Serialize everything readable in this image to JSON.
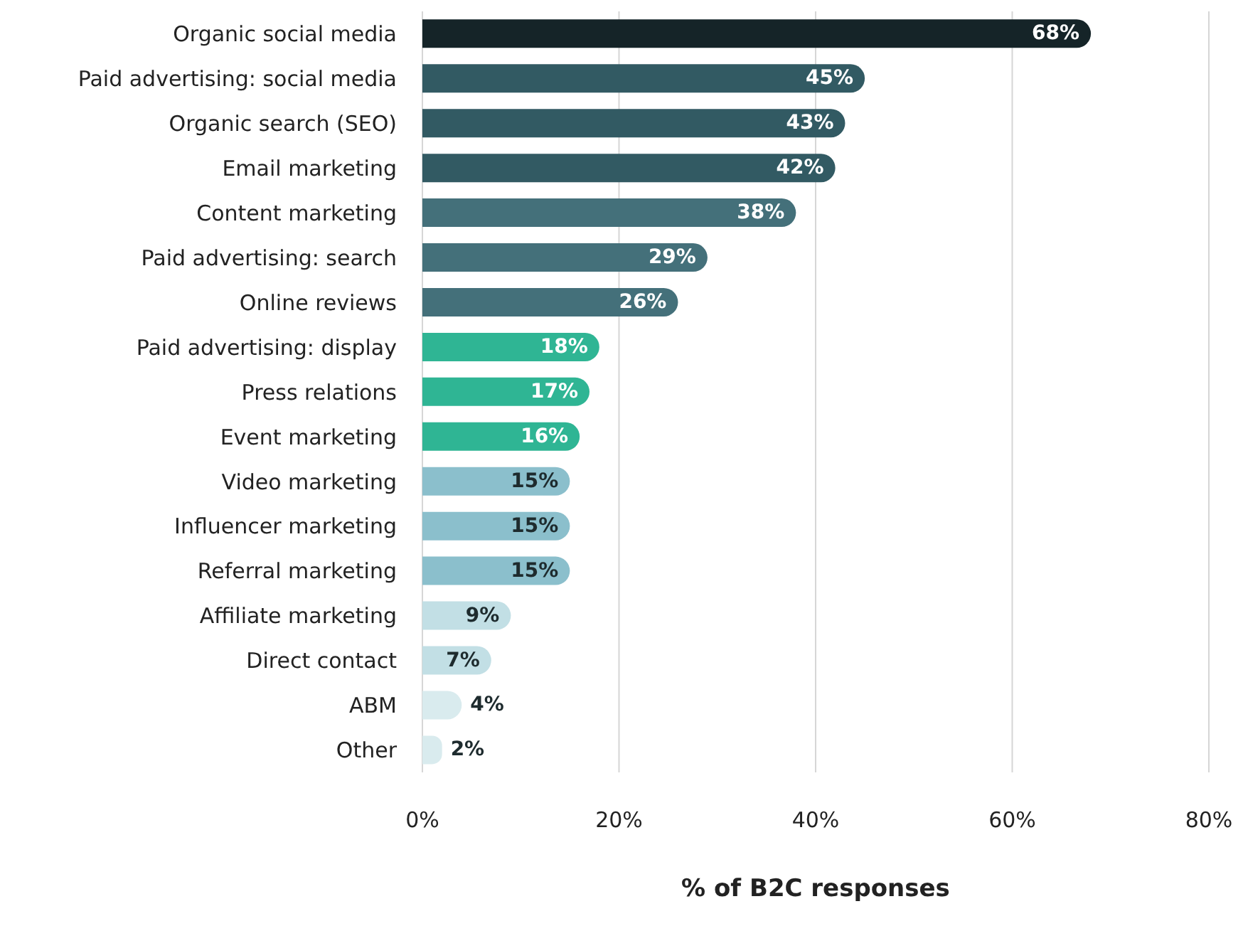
{
  "chart_data": {
    "type": "bar",
    "orientation": "horizontal",
    "xlabel": "% of B2C responses",
    "categories": [
      "Organic social media",
      "Paid advertising: social media",
      "Organic search (SEO)",
      "Email marketing",
      "Content marketing",
      "Paid advertising: search",
      "Online reviews",
      "Paid advertising: display",
      "Press relations",
      "Event marketing",
      "Video marketing",
      "Influencer marketing",
      "Referral marketing",
      "Affiliate marketing",
      "Direct contact",
      "ABM",
      "Other"
    ],
    "values": [
      68,
      45,
      43,
      42,
      38,
      29,
      26,
      18,
      17,
      16,
      15,
      15,
      15,
      9,
      7,
      4,
      2
    ],
    "colors": [
      "#152428",
      "#325a63",
      "#325a63",
      "#325a63",
      "#44707a",
      "#44707a",
      "#44707a",
      "#2fb594",
      "#2fb594",
      "#2fb594",
      "#8bbfcc",
      "#8bbfcc",
      "#8bbfcc",
      "#c2dfe5",
      "#c2dfe5",
      "#d9ebee",
      "#d9ebee"
    ],
    "value_labels": [
      "68%",
      "45%",
      "43%",
      "42%",
      "38%",
      "29%",
      "26%",
      "18%",
      "17%",
      "16%",
      "15%",
      "15%",
      "15%",
      "9%",
      "7%",
      "4%",
      "2%"
    ],
    "xlim": [
      0,
      80
    ],
    "xticks": [
      {
        "value": 0,
        "label": "0%"
      },
      {
        "value": 20,
        "label": "20%"
      },
      {
        "value": 40,
        "label": "40%"
      },
      {
        "value": 60,
        "label": "60%"
      },
      {
        "value": 80,
        "label": "80%"
      }
    ],
    "grid": "x"
  }
}
